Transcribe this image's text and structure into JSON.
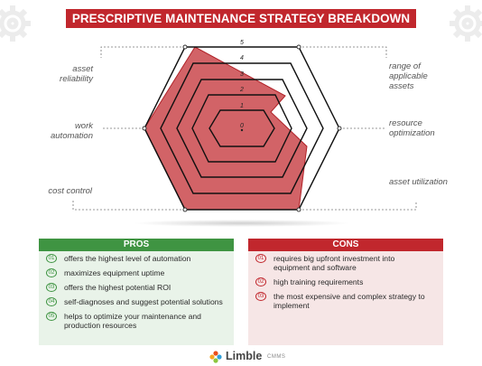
{
  "title": "PRESCRIPTIVE MAINTENANCE STRATEGY BREAKDOWN",
  "colors": {
    "accent_red": "#c1272d",
    "accent_green": "#3f9442",
    "highlight_fill": "#c1272d"
  },
  "radar": {
    "levels": [
      "5",
      "4",
      "3",
      "2",
      "1",
      "0"
    ],
    "labels_left": [
      "asset reliability",
      "work automation",
      "cost control"
    ],
    "labels_right": [
      "range of applicable assets",
      "resource optimization",
      "asset utilization"
    ]
  },
  "pros": {
    "heading": "PROS",
    "items": [
      {
        "num": "01",
        "text": "offers the highest level of automation"
      },
      {
        "num": "02",
        "text": "maximizes equipment uptime"
      },
      {
        "num": "03",
        "text": "offers the highest potential ROI"
      },
      {
        "num": "04",
        "text": "self-diagnoses and suggest potential solutions"
      },
      {
        "num": "05",
        "text": "helps to optimize your maintenance and production resources"
      }
    ]
  },
  "cons": {
    "heading": "CONS",
    "items": [
      {
        "num": "01",
        "text": "requires big upfront investment into equipment and software"
      },
      {
        "num": "02",
        "text": "high training requirements"
      },
      {
        "num": "03",
        "text": "the most expensive and complex strategy to implement"
      }
    ]
  },
  "brand": {
    "name": "Limble",
    "suffix": "CMMS"
  }
}
